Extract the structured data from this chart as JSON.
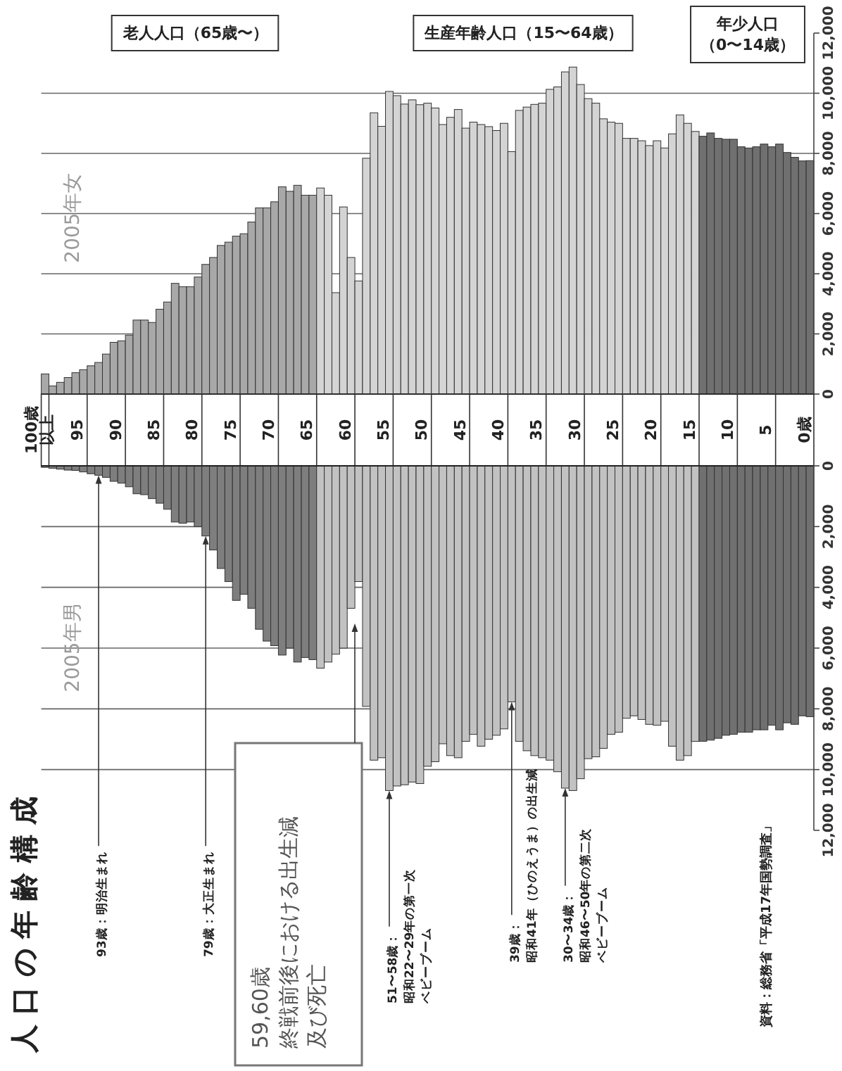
{
  "chart_data": [
    {
      "type": "bar",
      "title": "人口の年齢構成",
      "x": [
        100,
        99,
        98,
        97,
        96,
        95,
        94,
        93,
        92,
        91,
        90,
        89,
        88,
        87,
        86,
        85,
        84,
        83,
        82,
        81,
        80,
        79,
        78,
        77,
        76,
        75,
        74,
        73,
        72,
        71,
        70,
        69,
        68,
        67,
        66,
        65,
        64,
        63,
        62,
        61,
        60,
        59,
        58,
        57,
        56,
        55,
        54,
        53,
        52,
        51,
        50,
        49,
        48,
        47,
        46,
        45,
        44,
        43,
        42,
        41,
        40,
        39,
        38,
        37,
        36,
        35,
        34,
        33,
        32,
        31,
        30,
        29,
        28,
        27,
        26,
        25,
        24,
        23,
        22,
        21,
        20,
        19,
        18,
        17,
        16,
        15,
        14,
        13,
        12,
        11,
        10,
        9,
        8,
        7,
        6,
        5,
        4,
        3,
        2,
        1,
        0
      ],
      "xlim": [
        100.5,
        -0.5
      ],
      "xticks": [
        {
          "value": 100,
          "label": "100歳以上"
        },
        95,
        90,
        85,
        80,
        75,
        70,
        65,
        60,
        55,
        50,
        45,
        40,
        35,
        30,
        25,
        20,
        15,
        10,
        5,
        {
          "value": 0,
          "label": "0歳"
        }
      ],
      "ylim": [
        0,
        12000
      ],
      "yticks": [
        0,
        {
          "value": 2000,
          "label": "2,000"
        },
        {
          "value": 4000,
          "label": "4,000"
        },
        {
          "value": 6000,
          "label": "6,000"
        },
        {
          "value": 8000,
          "label": "8,000"
        },
        {
          "value": 10000,
          "label": "10,000"
        },
        {
          "value": 12000,
          "label": "12,000"
        }
      ],
      "grid": "y",
      "series": [
        {
          "name": "2005年女",
          "colors": [
            "#a8a8a8",
            "#a8a8a8",
            "#a8a8a8",
            "#a8a8a8",
            "#a8a8a8",
            "#a8a8a8",
            "#a8a8a8",
            "#a8a8a8",
            "#a8a8a8",
            "#a8a8a8",
            "#a8a8a8",
            "#a8a8a8",
            "#a8a8a8",
            "#a8a8a8",
            "#a8a8a8",
            "#a8a8a8",
            "#a8a8a8",
            "#a8a8a8",
            "#a8a8a8",
            "#a8a8a8",
            "#a8a8a8",
            "#a8a8a8",
            "#a8a8a8",
            "#a8a8a8",
            "#a8a8a8",
            "#a8a8a8",
            "#a8a8a8",
            "#a8a8a8",
            "#a8a8a8",
            "#a8a8a8",
            "#a8a8a8",
            "#a8a8a8",
            "#a8a8a8",
            "#a8a8a8",
            "#a8a8a8",
            "#a8a8a8",
            "#d4d4d4",
            "#d4d4d4",
            "#d4d4d4",
            "#d4d4d4",
            "#d4d4d4",
            "#d4d4d4",
            "#d4d4d4",
            "#d4d4d4",
            "#d4d4d4",
            "#d4d4d4",
            "#d4d4d4",
            "#d4d4d4",
            "#d4d4d4",
            "#d4d4d4",
            "#d4d4d4",
            "#d4d4d4",
            "#d4d4d4",
            "#d4d4d4",
            "#d4d4d4",
            "#d4d4d4",
            "#d4d4d4",
            "#d4d4d4",
            "#d4d4d4",
            "#d4d4d4",
            "#d4d4d4",
            "#d4d4d4",
            "#d4d4d4",
            "#d4d4d4",
            "#d4d4d4",
            "#d4d4d4",
            "#d4d4d4",
            "#d4d4d4",
            "#d4d4d4",
            "#d4d4d4",
            "#d4d4d4",
            "#d4d4d4",
            "#d4d4d4",
            "#d4d4d4",
            "#d4d4d4",
            "#d4d4d4",
            "#d4d4d4",
            "#d4d4d4",
            "#d4d4d4",
            "#d4d4d4",
            "#d4d4d4",
            "#d4d4d4",
            "#d4d4d4",
            "#d4d4d4",
            "#d4d4d4",
            "#d4d4d4",
            "#707070",
            "#707070",
            "#707070",
            "#707070",
            "#707070",
            "#707070",
            "#707070",
            "#707070",
            "#707070",
            "#707070",
            "#707070",
            "#707070",
            "#707070",
            "#707070",
            "#707070"
          ],
          "values": [
            670,
            270,
            390,
            550,
            710,
            810,
            940,
            1050,
            1330,
            1720,
            1770,
            1960,
            2460,
            2460,
            2380,
            2820,
            3060,
            3680,
            3570,
            3570,
            3890,
            4310,
            4540,
            4940,
            5050,
            5250,
            5330,
            5720,
            6190,
            6190,
            6390,
            6890,
            6740,
            6940,
            6610,
            6610,
            6850,
            6610,
            3370,
            6220,
            4540,
            3760,
            7840,
            9350,
            8900,
            10060,
            9920,
            9640,
            9780,
            9620,
            9670,
            9510,
            8960,
            9200,
            9460,
            8840,
            9040,
            8960,
            8890,
            8760,
            9000,
            8060,
            9430,
            9540,
            9630,
            9670,
            10130,
            10210,
            10710,
            10870,
            10290,
            9820,
            9670,
            9150,
            9040,
            9000,
            8500,
            8500,
            8420,
            8260,
            8420,
            8180,
            8650,
            9280,
            9000,
            8730,
            8570,
            8680,
            8500,
            8470,
            8470,
            8220,
            8180,
            8220,
            8310,
            8220,
            8310,
            8030,
            7870,
            7750,
            7760
          ]
        }
      ],
      "annotations": [
        "老人人口（65歳〜）",
        "生産年齢人口（15〜64歳）",
        "年少人口",
        "（0〜14歳）"
      ]
    },
    {
      "type": "bar",
      "x": [
        100,
        99,
        98,
        97,
        96,
        95,
        94,
        93,
        92,
        91,
        90,
        89,
        88,
        87,
        86,
        85,
        84,
        83,
        82,
        81,
        80,
        79,
        78,
        77,
        76,
        75,
        74,
        73,
        72,
        71,
        70,
        69,
        68,
        67,
        66,
        65,
        64,
        63,
        62,
        61,
        60,
        59,
        58,
        57,
        56,
        55,
        54,
        53,
        52,
        51,
        50,
        49,
        48,
        47,
        46,
        45,
        44,
        43,
        42,
        41,
        40,
        39,
        38,
        37,
        36,
        35,
        34,
        33,
        32,
        31,
        30,
        29,
        28,
        27,
        26,
        25,
        24,
        23,
        22,
        21,
        20,
        19,
        18,
        17,
        16,
        15,
        14,
        13,
        12,
        11,
        10,
        9,
        8,
        7,
        6,
        5,
        4,
        3,
        2,
        1,
        0
      ],
      "xlim": [
        100.5,
        -0.5
      ],
      "ylim": [
        12000,
        0
      ],
      "yticks": [
        0,
        {
          "value": 2000,
          "label": "2,000"
        },
        {
          "value": 4000,
          "label": "4,000"
        },
        {
          "value": 6000,
          "label": "6,000"
        },
        {
          "value": 8000,
          "label": "8,000"
        },
        {
          "value": 10000,
          "label": "10,000"
        },
        {
          "value": 12000,
          "label": "12,000"
        }
      ],
      "tick_labels": "y",
      "grid": "y",
      "series": [
        {
          "name": "2005年男",
          "colors": [
            "#7e7e7e",
            "#7e7e7e",
            "#7e7e7e",
            "#7e7e7e",
            "#7e7e7e",
            "#7e7e7e",
            "#7e7e7e",
            "#7e7e7e",
            "#7e7e7e",
            "#7e7e7e",
            "#7e7e7e",
            "#7e7e7e",
            "#7e7e7e",
            "#7e7e7e",
            "#7e7e7e",
            "#7e7e7e",
            "#7e7e7e",
            "#7e7e7e",
            "#7e7e7e",
            "#7e7e7e",
            "#7e7e7e",
            "#7e7e7e",
            "#7e7e7e",
            "#7e7e7e",
            "#7e7e7e",
            "#7e7e7e",
            "#7e7e7e",
            "#7e7e7e",
            "#7e7e7e",
            "#7e7e7e",
            "#7e7e7e",
            "#7e7e7e",
            "#7e7e7e",
            "#7e7e7e",
            "#7e7e7e",
            "#7e7e7e",
            "#c2c2c2",
            "#c2c2c2",
            "#c2c2c2",
            "#c2c2c2",
            "#c2c2c2",
            "#c2c2c2",
            "#c2c2c2",
            "#c2c2c2",
            "#c2c2c2",
            "#c2c2c2",
            "#c2c2c2",
            "#c2c2c2",
            "#c2c2c2",
            "#c2c2c2",
            "#c2c2c2",
            "#c2c2c2",
            "#c2c2c2",
            "#c2c2c2",
            "#c2c2c2",
            "#c2c2c2",
            "#c2c2c2",
            "#c2c2c2",
            "#c2c2c2",
            "#c2c2c2",
            "#c2c2c2",
            "#c2c2c2",
            "#c2c2c2",
            "#c2c2c2",
            "#c2c2c2",
            "#c2c2c2",
            "#c2c2c2",
            "#c2c2c2",
            "#c2c2c2",
            "#c2c2c2",
            "#c2c2c2",
            "#c2c2c2",
            "#c2c2c2",
            "#c2c2c2",
            "#c2c2c2",
            "#c2c2c2",
            "#c2c2c2",
            "#c2c2c2",
            "#c2c2c2",
            "#c2c2c2",
            "#c2c2c2",
            "#c2c2c2",
            "#c2c2c2",
            "#c2c2c2",
            "#c2c2c2",
            "#c2c2c2",
            "#707070",
            "#707070",
            "#707070",
            "#707070",
            "#707070",
            "#707070",
            "#707070",
            "#707070",
            "#707070",
            "#707070",
            "#707070",
            "#707070",
            "#707070",
            "#707070",
            "#707070"
          ],
          "values": [
            50,
            80,
            110,
            140,
            150,
            200,
            260,
            310,
            380,
            510,
            570,
            690,
            920,
            950,
            1080,
            1230,
            1430,
            1850,
            1890,
            1850,
            2000,
            2310,
            2770,
            3380,
            3810,
            4430,
            4230,
            4690,
            5380,
            5770,
            5920,
            6230,
            6000,
            6460,
            6310,
            6380,
            6660,
            6460,
            6200,
            6000,
            4690,
            3810,
            7920,
            9690,
            9610,
            10690,
            10540,
            10500,
            10410,
            10460,
            9890,
            9740,
            9150,
            9540,
            9610,
            9070,
            8840,
            9230,
            9000,
            8870,
            8660,
            7770,
            9070,
            9380,
            9540,
            9610,
            9690,
            10070,
            10610,
            10690,
            10300,
            9640,
            9580,
            9300,
            8840,
            8770,
            8310,
            8230,
            8350,
            8510,
            8540,
            8410,
            9230,
            9690,
            9540,
            9070,
            9070,
            9030,
            8970,
            8870,
            8840,
            8770,
            8770,
            8690,
            8690,
            8540,
            8690,
            8460,
            8510,
            8230,
            8260
          ]
        }
      ],
      "annotations": [
        {
          "text": "93歳：明治生まれ",
          "x": 93,
          "y": 310
        },
        {
          "text": "79歳：大正生まれ",
          "x": 79,
          "y": 2310
        },
        "59,60歳",
        "終戦前後における出生減",
        "及び死亡",
        {
          "text": "51〜58歳：",
          "x": 55,
          "y": 10690
        },
        "昭和22〜29年の第一次",
        "ベビーブーム",
        {
          "text": "39歳：",
          "x": 39,
          "y": 7770
        },
        "昭和41年（ひのえうま）の出生減",
        {
          "text": "30〜34歳：",
          "x": 32,
          "y": 10610
        },
        "昭和46〜50年の第二次",
        "ベビーブーム",
        "資料：総務省「平成17年国勢調査」"
      ]
    }
  ]
}
